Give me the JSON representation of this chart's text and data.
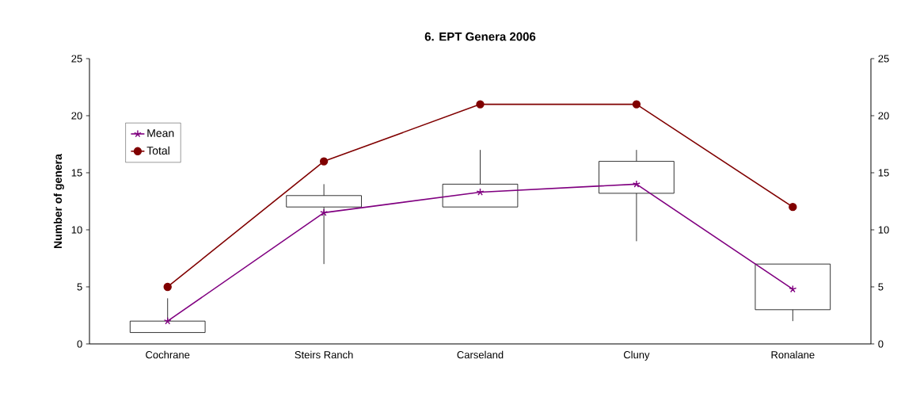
{
  "chart_data": {
    "type": "box",
    "title": "**6.  EPT Genera 2006**",
    "ylabel": "**Number of genera**",
    "categories": [
      "Cochrane",
      "Steirs Ranch",
      "Carseland",
      "Cluny",
      "Ronalane"
    ],
    "boxes": [
      {
        "low": 1,
        "q1": 1,
        "q3": 2,
        "high": 4
      },
      {
        "low": 7,
        "q1": 12,
        "q3": 13,
        "high": 14
      },
      {
        "low": 12,
        "q1": 12,
        "q3": 14,
        "high": 17
      },
      {
        "low": 9,
        "q1": 13.2,
        "q3": 16,
        "high": 17
      },
      {
        "low": 2,
        "q1": 3,
        "q3": 7,
        "high": 7
      }
    ],
    "series": [
      {
        "name": "Mean",
        "type": "line",
        "color": "#800080",
        "marker": "cross",
        "values": [
          2,
          11.5,
          13.3,
          14,
          4.8
        ]
      },
      {
        "name": "Total",
        "type": "line",
        "color": "#800000",
        "marker": "circle",
        "values": [
          5,
          16,
          21,
          21,
          12
        ]
      }
    ],
    "ylim": [
      0,
      25
    ],
    "yticks": [
      0,
      5,
      10,
      15,
      20,
      25
    ],
    "y2lim": [
      0,
      25
    ],
    "y2ticks": [
      0,
      5,
      10,
      15,
      20,
      25
    ],
    "grid": false,
    "legend": "top left"
  }
}
